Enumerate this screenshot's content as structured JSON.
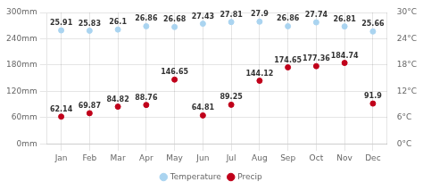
{
  "chart_data": {
    "type": "scatter",
    "categories": [
      "Jan",
      "Feb",
      "Mar",
      "Apr",
      "May",
      "Jun",
      "Jul",
      "Aug",
      "Sep",
      "Oct",
      "Nov",
      "Dec"
    ],
    "series": [
      {
        "name": "Temperature",
        "color": "#aad4f0",
        "axis": "y2",
        "values": [
          25.91,
          25.83,
          26.1,
          26.86,
          26.68,
          27.43,
          27.81,
          27.9,
          26.86,
          27.74,
          26.81,
          25.66
        ]
      },
      {
        "name": "Precip",
        "color": "#c0001a",
        "values": [
          62.14,
          69.87,
          84.82,
          88.76,
          146.65,
          64.81,
          89.25,
          144.12,
          174.65,
          177.36,
          184.74,
          91.9
        ]
      }
    ],
    "ylim": [
      0,
      300
    ],
    "yticks": [
      {
        "value": 0,
        "label": "0mm"
      },
      {
        "value": 60,
        "label": "60mm"
      },
      {
        "value": 120,
        "label": "120mm"
      },
      {
        "value": 180,
        "label": "180mm"
      },
      {
        "value": 240,
        "label": "240mm"
      },
      {
        "value": 300,
        "label": "300mm"
      }
    ],
    "y2lim": [
      0,
      30
    ],
    "y2ticks": [
      {
        "value": 0,
        "label": "0°C"
      },
      {
        "value": 6,
        "label": "6°C"
      },
      {
        "value": 12,
        "label": "12°C"
      },
      {
        "value": 18,
        "label": "18°C"
      },
      {
        "value": 24,
        "label": "24°C"
      },
      {
        "value": 30,
        "label": "30°C"
      }
    ],
    "grid": true,
    "legend": "bottom",
    "data_labels": true
  }
}
